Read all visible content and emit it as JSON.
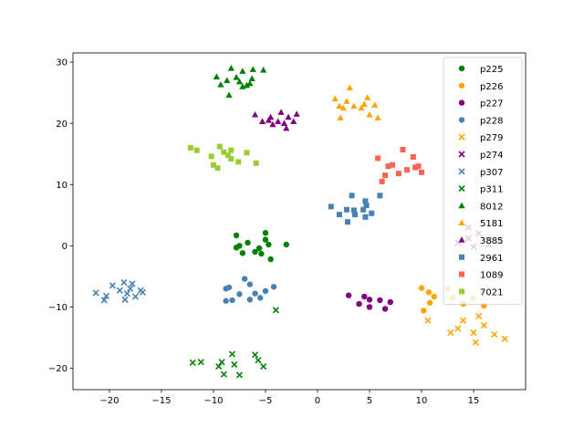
{
  "chart_data": {
    "type": "scatter",
    "title": "",
    "xlabel": "",
    "ylabel": "",
    "xlim": [
      -23.5,
      20
    ],
    "ylim": [
      -23.5,
      31.5
    ],
    "xticks": [
      -20,
      -15,
      -10,
      -5,
      0,
      5,
      10,
      15
    ],
    "yticks": [
      -20,
      -10,
      0,
      10,
      20,
      30
    ],
    "xtick_labels": [
      "−20",
      "−15",
      "−10",
      "−5",
      "0",
      "5",
      "10",
      "15"
    ],
    "ytick_labels": [
      "−20",
      "−10",
      "0",
      "10",
      "20",
      "30"
    ],
    "grid": false,
    "legend_position": "upper-right",
    "series": [
      {
        "name": "p225",
        "color": "#008000",
        "marker": "circle",
        "points": [
          [
            -7.8,
            1.7
          ],
          [
            -6.7,
            0.5
          ],
          [
            -5.0,
            1.0
          ],
          [
            -5.0,
            2.1
          ],
          [
            -7.5,
            0.0
          ],
          [
            -7.2,
            -1.2
          ],
          [
            -5.6,
            -0.4
          ],
          [
            -4.7,
            0.2
          ],
          [
            -3.0,
            0.2
          ],
          [
            -4.5,
            -2.2
          ],
          [
            -6.0,
            -1.0
          ],
          [
            -7.8,
            -0.3
          ],
          [
            -5.4,
            -1.3
          ]
        ]
      },
      {
        "name": "p226",
        "color": "#ffa500",
        "marker": "circle",
        "points": [
          [
            10.0,
            -6.9
          ],
          [
            10.7,
            -7.6
          ],
          [
            11.2,
            -8.3
          ],
          [
            10.8,
            -9.3
          ],
          [
            10.2,
            -10.6
          ],
          [
            12.5,
            -7.0
          ],
          [
            13.0,
            -8.5
          ],
          [
            14.0,
            -9.5
          ],
          [
            15.0,
            -8.5
          ],
          [
            16.0,
            -9.8
          ]
        ]
      },
      {
        "name": "p227",
        "color": "#800080",
        "marker": "circle",
        "points": [
          [
            3.0,
            -8.1
          ],
          [
            4.5,
            -8.3
          ],
          [
            5.0,
            -8.8
          ],
          [
            6.0,
            -8.9
          ],
          [
            7.0,
            -9.2
          ],
          [
            4.0,
            -9.5
          ],
          [
            5.0,
            -10.0
          ],
          [
            6.5,
            -10.3
          ]
        ]
      },
      {
        "name": "p228",
        "color": "#4682b4",
        "marker": "circle",
        "points": [
          [
            -7.0,
            -5.4
          ],
          [
            -8.8,
            -7.0
          ],
          [
            -8.5,
            -6.8
          ],
          [
            -6.5,
            -6.3
          ],
          [
            -6.0,
            -7.8
          ],
          [
            -5.0,
            -7.4
          ],
          [
            -4.2,
            -6.7
          ],
          [
            -7.5,
            -7.9
          ],
          [
            -8.8,
            -9.0
          ],
          [
            -8.2,
            -8.9
          ],
          [
            -6.5,
            -8.8
          ],
          [
            -5.5,
            -8.5
          ]
        ]
      },
      {
        "name": "p279",
        "color": "#ffa500",
        "marker": "x",
        "points": [
          [
            10.6,
            -12.2
          ],
          [
            12.8,
            -14.2
          ],
          [
            14.0,
            -12.2
          ],
          [
            15.0,
            -14.2
          ],
          [
            15.2,
            -15.8
          ],
          [
            16.0,
            -13.0
          ],
          [
            17.0,
            -14.5
          ],
          [
            18.0,
            -15.2
          ],
          [
            13.5,
            -13.5
          ],
          [
            15.5,
            -11.5
          ]
        ]
      },
      {
        "name": "p274",
        "color": "#800080",
        "marker": "x",
        "points": [
          [
            14.5,
            3.0
          ],
          [
            15.5,
            2.0
          ],
          [
            16.5,
            1.0
          ],
          [
            13.5,
            0.5
          ],
          [
            15.0,
            -0.2
          ],
          [
            16.5,
            0.2
          ],
          [
            17.5,
            0.8
          ],
          [
            14.5,
            1.2
          ]
        ]
      },
      {
        "name": "p307",
        "color": "#4682b4",
        "marker": "x",
        "points": [
          [
            -21.3,
            -7.7
          ],
          [
            -20.5,
            -8.9
          ],
          [
            -20.3,
            -8.2
          ],
          [
            -19.7,
            -6.5
          ],
          [
            -19.0,
            -7.3
          ],
          [
            -18.6,
            -6.0
          ],
          [
            -18.5,
            -8.8
          ],
          [
            -18.0,
            -7.0
          ],
          [
            -17.8,
            -6.2
          ],
          [
            -17.5,
            -8.3
          ],
          [
            -17.0,
            -7.3
          ],
          [
            -16.8,
            -7.6
          ],
          [
            -18.3,
            -7.8
          ]
        ]
      },
      {
        "name": "p311",
        "color": "#008000",
        "marker": "x",
        "points": [
          [
            -12.0,
            -19.1
          ],
          [
            -11.2,
            -19.0
          ],
          [
            -9.5,
            -19.7
          ],
          [
            -9.2,
            -19.0
          ],
          [
            -9.0,
            -21.0
          ],
          [
            -8.2,
            -17.7
          ],
          [
            -8.0,
            -19.4
          ],
          [
            -7.5,
            -21.1
          ],
          [
            -6.0,
            -17.8
          ],
          [
            -5.7,
            -18.7
          ],
          [
            -5.2,
            -19.7
          ],
          [
            -4.0,
            -10.5
          ]
        ]
      },
      {
        "name": "8012",
        "color": "#008000",
        "marker": "triangle",
        "points": [
          [
            -9.7,
            27.6
          ],
          [
            -9.3,
            26.3
          ],
          [
            -8.7,
            27.0
          ],
          [
            -8.5,
            24.6
          ],
          [
            -8.3,
            29.0
          ],
          [
            -7.8,
            27.5
          ],
          [
            -7.5,
            26.8
          ],
          [
            -7.2,
            26.0
          ],
          [
            -6.8,
            26.2
          ],
          [
            -6.5,
            26.5
          ],
          [
            -6.3,
            27.3
          ],
          [
            -5.2,
            28.7
          ],
          [
            -7.2,
            28.5
          ],
          [
            -6.2,
            28.8
          ]
        ]
      },
      {
        "name": "5181",
        "color": "#ffa500",
        "marker": "triangle",
        "points": [
          [
            1.7,
            24.0
          ],
          [
            2.1,
            22.8
          ],
          [
            2.2,
            20.9
          ],
          [
            2.5,
            22.5
          ],
          [
            2.8,
            23.6
          ],
          [
            3.1,
            25.8
          ],
          [
            3.5,
            22.8
          ],
          [
            4.2,
            22.5
          ],
          [
            4.5,
            23.1
          ],
          [
            4.8,
            24.2
          ],
          [
            5.0,
            21.4
          ],
          [
            5.5,
            23.0
          ],
          [
            5.8,
            20.9
          ]
        ]
      },
      {
        "name": "3885",
        "color": "#800080",
        "marker": "triangle",
        "points": [
          [
            -6.0,
            21.4
          ],
          [
            -5.3,
            20.3
          ],
          [
            -4.7,
            20.5
          ],
          [
            -4.5,
            21.0
          ],
          [
            -3.8,
            20.3
          ],
          [
            -3.5,
            21.8
          ],
          [
            -3.2,
            20.0
          ],
          [
            -3.0,
            19.2
          ],
          [
            -2.8,
            21.0
          ],
          [
            -2.3,
            20.3
          ],
          [
            -2.0,
            21.5
          ],
          [
            -4.3,
            19.8
          ]
        ]
      },
      {
        "name": "2961",
        "color": "#4682b4",
        "marker": "square",
        "points": [
          [
            1.3,
            6.4
          ],
          [
            2.1,
            5.1
          ],
          [
            2.8,
            5.9
          ],
          [
            2.9,
            3.9
          ],
          [
            3.3,
            8.2
          ],
          [
            3.5,
            5.8
          ],
          [
            3.6,
            5.1
          ],
          [
            4.4,
            5.9
          ],
          [
            4.6,
            4.7
          ],
          [
            4.6,
            7.3
          ],
          [
            4.7,
            6.6
          ],
          [
            5.2,
            5.3
          ],
          [
            6.0,
            8.2
          ]
        ]
      },
      {
        "name": "1089",
        "color": "#fa6450",
        "marker": "square",
        "points": [
          [
            5.8,
            14.3
          ],
          [
            6.2,
            10.5
          ],
          [
            6.5,
            11.5
          ],
          [
            6.8,
            13.0
          ],
          [
            7.2,
            13.2
          ],
          [
            7.8,
            11.8
          ],
          [
            8.2,
            15.7
          ],
          [
            8.6,
            12.4
          ],
          [
            9.2,
            14.5
          ],
          [
            9.4,
            12.8
          ],
          [
            9.7,
            13.0
          ],
          [
            10.0,
            12.0
          ]
        ]
      },
      {
        "name": "7021",
        "color": "#9acd32",
        "marker": "square",
        "points": [
          [
            -12.2,
            16.0
          ],
          [
            -11.6,
            15.6
          ],
          [
            -10.2,
            14.6
          ],
          [
            -10.0,
            13.2
          ],
          [
            -9.6,
            12.7
          ],
          [
            -9.4,
            16.2
          ],
          [
            -9.0,
            15.3
          ],
          [
            -8.6,
            14.8
          ],
          [
            -8.3,
            14.2
          ],
          [
            -8.3,
            15.6
          ],
          [
            -7.6,
            13.7
          ],
          [
            -6.8,
            15.2
          ],
          [
            -5.9,
            13.5
          ]
        ]
      }
    ]
  }
}
